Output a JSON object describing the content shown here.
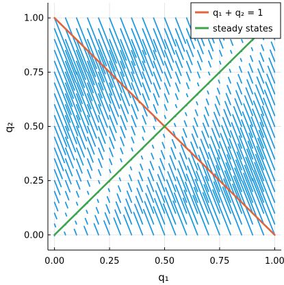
{
  "chart_data": {
    "type": "quiver",
    "title": "",
    "xlabel": "q₁",
    "ylabel": "q₂",
    "xlim": [
      -0.03,
      1.03
    ],
    "ylim": [
      -0.07,
      1.07
    ],
    "xticks": [
      0.0,
      0.25,
      0.5,
      0.75,
      1.0
    ],
    "yticks": [
      0.0,
      0.25,
      0.5,
      0.75,
      1.0
    ],
    "xtick_labels": [
      "0.00",
      "0.25",
      "0.50",
      "0.75",
      "1.00"
    ],
    "ytick_labels": [
      "0.00",
      "0.25",
      "0.50",
      "0.75",
      "1.00"
    ],
    "grid": true,
    "legend_position": "top-right",
    "vector_field": {
      "grid_start": 0.0,
      "grid_end": 1.0,
      "grid_count": 21,
      "color": "#1f9ae0",
      "description_of_direction": "arrows point toward the diagonal q1 = q2, growing longer away from it"
    },
    "series": [
      {
        "name": "q₁ + q₂ = 1",
        "color": "#e0643c",
        "x": [
          0.0,
          1.0
        ],
        "y": [
          1.0,
          0.0
        ]
      },
      {
        "name": "steady states",
        "color": "#3aa54a",
        "x": [
          0.0,
          1.0
        ],
        "y": [
          0.0,
          1.0
        ]
      }
    ]
  }
}
